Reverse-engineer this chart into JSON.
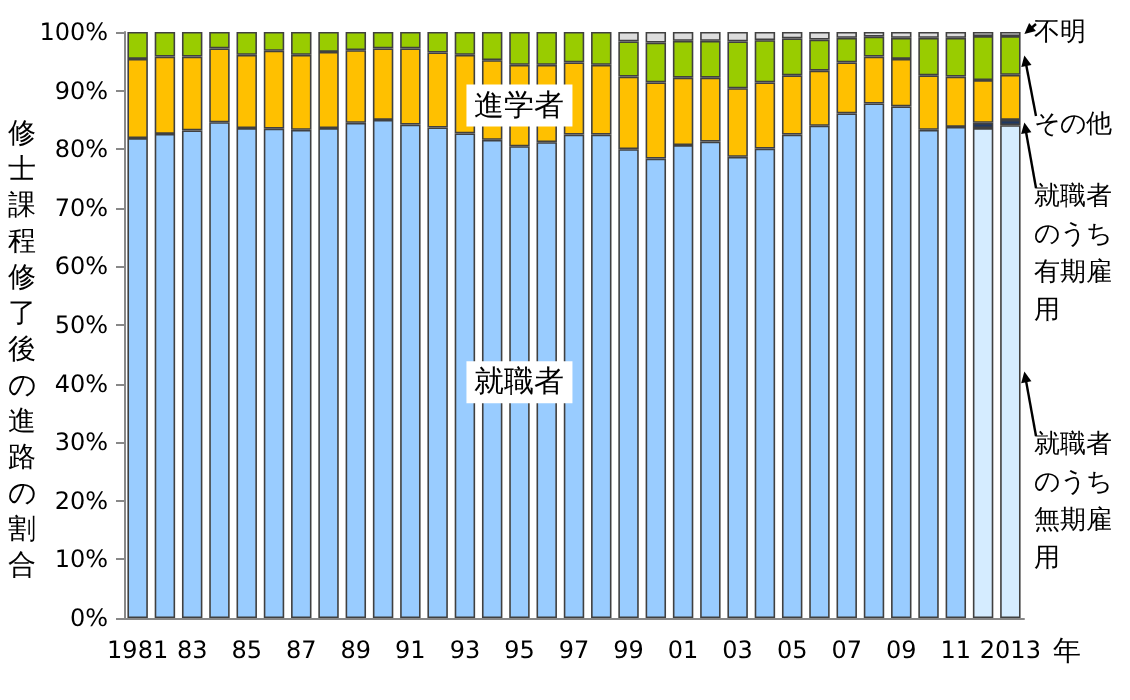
{
  "chart_data": {
    "type": "bar",
    "stacked": true,
    "ylabel": "修士課程修了後の進路の割合",
    "xlabel": "年",
    "categories": [
      "1981",
      null,
      "83",
      null,
      "85",
      null,
      "87",
      null,
      "89",
      null,
      "91",
      null,
      "93",
      null,
      "95",
      null,
      "97",
      null,
      "99",
      null,
      "01",
      null,
      "03",
      null,
      "05",
      null,
      "07",
      null,
      "09",
      null,
      "11",
      null,
      "2013"
    ],
    "ylim": [
      0,
      100
    ],
    "yticks": [
      {
        "value": 0,
        "label": "0%"
      },
      {
        "value": 10,
        "label": "10%"
      },
      {
        "value": 20,
        "label": "20%"
      },
      {
        "value": 30,
        "label": "30%"
      },
      {
        "value": 40,
        "label": "40%"
      },
      {
        "value": 50,
        "label": "50%"
      },
      {
        "value": 60,
        "label": "60%"
      },
      {
        "value": 70,
        "label": "70%"
      },
      {
        "value": 80,
        "label": "80%"
      },
      {
        "value": 90,
        "label": "90%"
      },
      {
        "value": 100,
        "label": "100%"
      }
    ],
    "grid": false,
    "series": [
      {
        "name": "就職者",
        "color": "#99ccff",
        "values": [
          81.9,
          82.6,
          83.2,
          84.6,
          83.6,
          83.5,
          83.3,
          83.6,
          84.5,
          85.0,
          84.2,
          83.7,
          82.7,
          81.6,
          80.5,
          81.2,
          82.5,
          82.5,
          80.0,
          78.4,
          80.7,
          81.3,
          78.7,
          80.1,
          82.5,
          84.0,
          86.1,
          87.8,
          87.3,
          83.3,
          83.8,
          null,
          null
        ]
      },
      {
        "name": "就職者のうち無期雇用",
        "color": "#d5ecff",
        "values": [
          null,
          null,
          null,
          null,
          null,
          null,
          null,
          null,
          null,
          null,
          null,
          null,
          null,
          null,
          null,
          null,
          null,
          null,
          null,
          null,
          null,
          null,
          null,
          null,
          null,
          null,
          null,
          null,
          null,
          null,
          null,
          83.6,
          84.1
        ]
      },
      {
        "name": "就職者のうち有期雇用",
        "color": "#1f3864",
        "values": [
          null,
          null,
          null,
          null,
          null,
          null,
          null,
          null,
          null,
          null,
          null,
          null,
          null,
          null,
          null,
          null,
          null,
          null,
          null,
          null,
          null,
          null,
          null,
          null,
          null,
          null,
          null,
          null,
          null,
          null,
          null,
          0.9,
          0.9
        ]
      },
      {
        "name": "進学者",
        "color": "#ffc000",
        "values": [
          13.5,
          13.2,
          12.6,
          12.6,
          12.5,
          13.3,
          12.8,
          13.0,
          12.4,
          12.2,
          13.0,
          12.8,
          13.4,
          13.6,
          13.9,
          13.2,
          12.3,
          11.9,
          12.4,
          13.0,
          11.5,
          10.9,
          11.7,
          11.3,
          10.1,
          9.4,
          8.7,
          8.0,
          8.1,
          9.3,
          8.6,
          7.3,
          7.7
        ]
      },
      {
        "name": "その他",
        "color": "#99cc00",
        "values": [
          4.6,
          4.2,
          4.2,
          2.8,
          3.9,
          3.2,
          3.9,
          3.4,
          3.1,
          2.8,
          2.8,
          3.5,
          3.9,
          4.8,
          5.6,
          5.6,
          5.2,
          5.6,
          6.0,
          6.8,
          6.3,
          6.3,
          8.0,
          7.2,
          6.3,
          5.3,
          4.2,
          3.4,
          3.6,
          6.4,
          6.6,
          7.5,
          6.6
        ]
      },
      {
        "name": "不明",
        "color": "#dddddd",
        "values": [
          null,
          null,
          null,
          null,
          null,
          null,
          null,
          null,
          null,
          null,
          null,
          null,
          null,
          null,
          null,
          null,
          null,
          null,
          1.6,
          1.8,
          1.5,
          1.5,
          1.6,
          1.4,
          1.1,
          1.3,
          1.0,
          0.8,
          1.0,
          1.0,
          1.0,
          0.7,
          0.7
        ]
      }
    ]
  }
}
